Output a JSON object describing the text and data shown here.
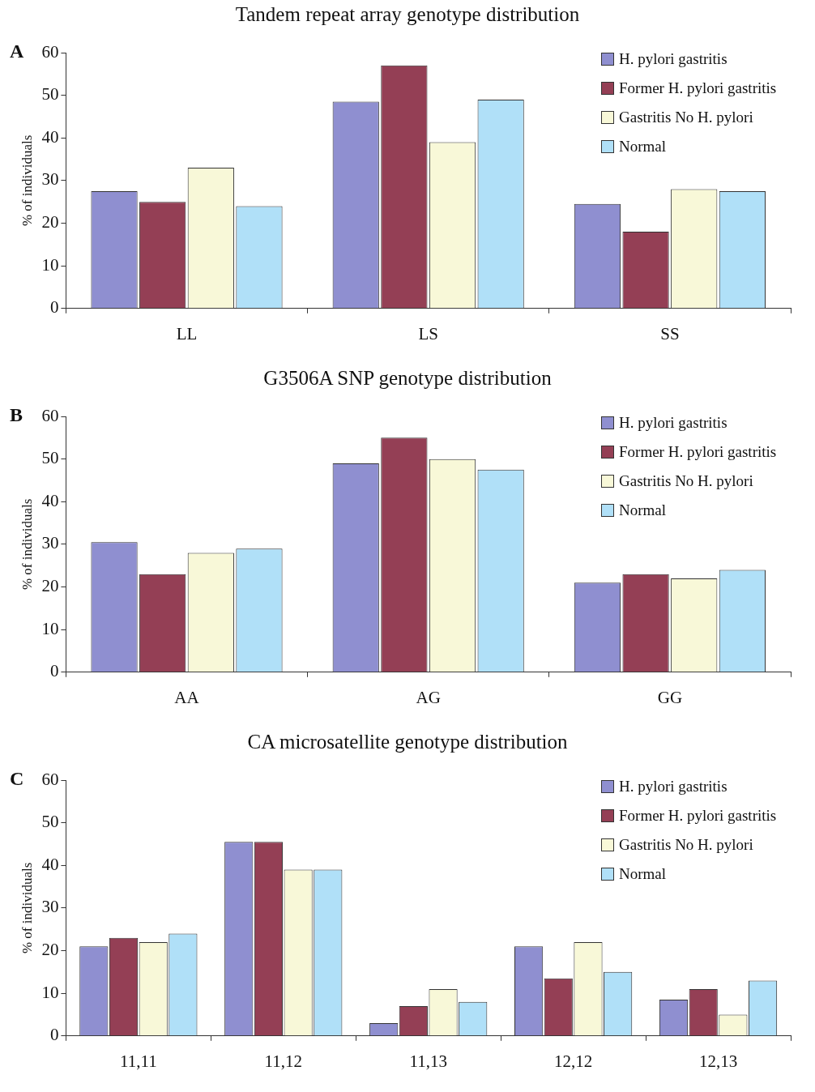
{
  "chart_data": [
    {
      "type": "bar",
      "title": "Tandem repeat array genotype distribution",
      "ylabel": "% of individuals",
      "annotations": [
        "A"
      ],
      "categories": [
        "LL",
        "LS",
        "SS"
      ],
      "series": [
        {
          "name": "H. pylori gastritis",
          "color": "#8f8fd0",
          "values": [
            27.5,
            48.5,
            24.5
          ]
        },
        {
          "name": "Former H. pylori gastritis",
          "color": "#943f55",
          "values": [
            25,
            57,
            18
          ]
        },
        {
          "name": "Gastritis No H. pylori",
          "color": "#f8f8d8",
          "values": [
            33,
            39,
            28
          ]
        },
        {
          "name": "Normal",
          "color": "#b0e0f8",
          "values": [
            24,
            49,
            27.5
          ]
        }
      ],
      "ylim": [
        0,
        60
      ],
      "yticks": [
        0,
        10,
        20,
        30,
        40,
        50,
        60
      ],
      "grid": false,
      "legend": "top right"
    },
    {
      "type": "bar",
      "title": "G3506A SNP genotype distribution",
      "ylabel": "% of individuals",
      "annotations": [
        "B"
      ],
      "categories": [
        "AA",
        "AG",
        "GG"
      ],
      "series": [
        {
          "name": "H. pylori gastritis",
          "color": "#8f8fd0",
          "values": [
            30.5,
            49,
            21
          ]
        },
        {
          "name": "Former H. pylori gastritis",
          "color": "#943f55",
          "values": [
            23,
            55,
            23
          ]
        },
        {
          "name": "Gastritis No H. pylori",
          "color": "#f8f8d8",
          "values": [
            28,
            50,
            22
          ]
        },
        {
          "name": "Normal",
          "color": "#b0e0f8",
          "values": [
            29,
            47.5,
            24
          ]
        }
      ],
      "ylim": [
        0,
        60
      ],
      "yticks": [
        0,
        10,
        20,
        30,
        40,
        50,
        60
      ],
      "grid": false,
      "legend": "top right"
    },
    {
      "type": "bar",
      "title": "CA microsatellite genotype distribution",
      "ylabel": "% of individuals",
      "annotations": [
        "C"
      ],
      "categories": [
        "11,11",
        "11,12",
        "11,13",
        "12,12",
        "12,13"
      ],
      "series": [
        {
          "name": "H. pylori gastritis",
          "color": "#8f8fd0",
          "values": [
            21,
            45.5,
            3,
            21,
            8.5
          ]
        },
        {
          "name": "Former H. pylori gastritis",
          "color": "#943f55",
          "values": [
            23,
            45.5,
            7,
            13.5,
            11
          ]
        },
        {
          "name": "Gastritis No H. pylori",
          "color": "#f8f8d8",
          "values": [
            22,
            39,
            11,
            22,
            5
          ]
        },
        {
          "name": "Normal",
          "color": "#b0e0f8",
          "values": [
            24,
            39,
            8,
            15,
            13
          ]
        }
      ],
      "ylim": [
        0,
        60
      ],
      "yticks": [
        0,
        10,
        20,
        30,
        40,
        50,
        60
      ],
      "grid": false,
      "legend": "top right"
    }
  ]
}
